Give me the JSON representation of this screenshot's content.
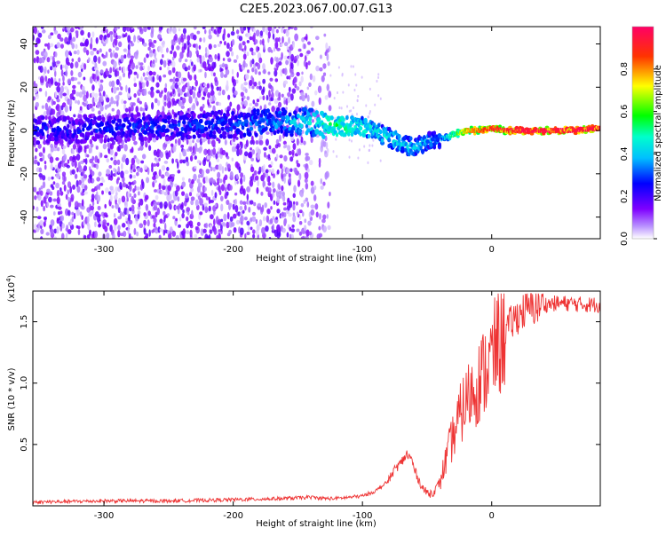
{
  "title": "C2E5.2023.067.00.07.G13",
  "chart_data": [
    {
      "type": "heatmap",
      "title": "",
      "xlabel": "Height of straight line (km)",
      "ylabel": "Frequency (Hz)",
      "xlim": [
        -355,
        84
      ],
      "ylim": [
        -50,
        48
      ],
      "xticks": [
        -300,
        -200,
        -100,
        0
      ],
      "xtick_labels": [
        "-300",
        "-200",
        "-100",
        "0"
      ],
      "yticks": [
        -40,
        -20,
        0,
        20,
        40
      ],
      "ytick_labels": [
        "-40",
        "-20",
        "0",
        "20",
        "40"
      ],
      "colorbar": {
        "label": "Normalized spectral amplitude",
        "range": [
          0,
          1
        ],
        "ticks": [
          0.0,
          0.2,
          0.4,
          0.6,
          0.8
        ],
        "tick_labels": [
          "0.0",
          "0.2",
          "0.4",
          "0.6",
          "0.8"
        ],
        "colormap": [
          "#ffffff",
          "#7f00ff",
          "#0000ff",
          "#00ffff",
          "#00ff00",
          "#ffff00",
          "#ff0000",
          "#ff0066"
        ]
      },
      "ridge": {
        "x": [
          -355,
          -300,
          -250,
          -200,
          -160,
          -140,
          -130,
          -120,
          -100,
          -80,
          -70,
          -60,
          -50,
          -40,
          -30,
          -20,
          -10,
          0,
          10,
          20,
          40,
          60,
          84
        ],
        "frequency": [
          0,
          1,
          2,
          3,
          4,
          4,
          3,
          2,
          2,
          -3,
          -6,
          -8,
          -5,
          -4,
          -2,
          0,
          0,
          1,
          0,
          0,
          0,
          0,
          1
        ],
        "amplitude": [
          0.28,
          0.28,
          0.3,
          0.32,
          0.4,
          0.45,
          0.5,
          0.55,
          0.5,
          0.45,
          0.45,
          0.4,
          0.4,
          0.35,
          0.55,
          0.8,
          0.85,
          0.9,
          0.9,
          0.95,
          0.95,
          0.95,
          0.95
        ]
      },
      "noise_extent_x": [
        -355,
        -125
      ]
    },
    {
      "type": "line",
      "title": "",
      "xlabel": "Height of straight line (km)",
      "ylabel": "SNR (10 * v/v)",
      "y_multiplier": "(x10",
      "y_multiplier_exp": "4",
      "y_multiplier_close": ")",
      "xlim": [
        -355,
        84
      ],
      "ylim": [
        0,
        1.75
      ],
      "xticks": [
        -300,
        -200,
        -100,
        0
      ],
      "xtick_labels": [
        "-300",
        "-200",
        "-100",
        "0"
      ],
      "yticks": [
        0.5,
        1.0,
        1.5
      ],
      "ytick_labels": [
        "0.5",
        "1.0",
        "1.5"
      ],
      "color": "#ee3333",
      "series": [
        {
          "x": [
            -355,
            -300,
            -250,
            -200,
            -160,
            -140,
            -130,
            -120,
            -100,
            -90,
            -80,
            -75,
            -70,
            -66,
            -62,
            -60,
            -56,
            -52,
            -48,
            -44,
            -40,
            -36,
            -32,
            -28,
            -24,
            -20,
            -16,
            -12,
            -8,
            -4,
            0,
            4,
            8,
            12,
            16,
            20,
            24,
            28,
            32,
            36,
            40,
            50,
            60,
            70,
            84
          ],
          "y": [
            0.03,
            0.04,
            0.04,
            0.05,
            0.06,
            0.07,
            0.06,
            0.06,
            0.08,
            0.12,
            0.2,
            0.3,
            0.35,
            0.42,
            0.38,
            0.3,
            0.2,
            0.12,
            0.1,
            0.12,
            0.2,
            0.35,
            0.5,
            0.62,
            0.75,
            0.85,
            0.92,
            0.98,
            1.05,
            1.12,
            1.2,
            1.3,
            1.38,
            1.45,
            1.5,
            1.55,
            1.58,
            1.6,
            1.62,
            1.63,
            1.64,
            1.65,
            1.65,
            1.64,
            1.64
          ]
        }
      ]
    }
  ]
}
